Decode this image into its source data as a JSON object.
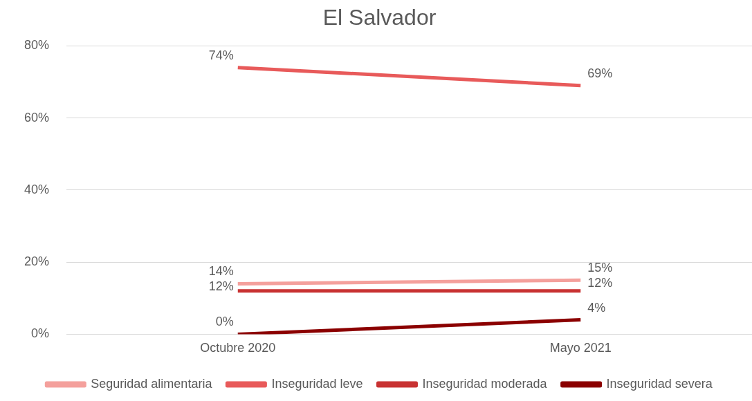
{
  "chart_data": {
    "type": "line",
    "title": "El Salvador",
    "categories": [
      "Octubre 2020",
      "Mayo 2021"
    ],
    "series": [
      {
        "name": "Seguridad alimentaria",
        "color": "#f4a09c",
        "values": [
          14,
          15
        ],
        "value_labels": [
          "14%",
          "15%"
        ]
      },
      {
        "name": "Inseguridad leve",
        "color": "#e85a5a",
        "values": [
          74,
          69
        ],
        "value_labels": [
          "74%",
          "69%"
        ]
      },
      {
        "name": "Inseguridad moderada",
        "color": "#c83232",
        "values": [
          12,
          12
        ],
        "value_labels": [
          "12%",
          "12%"
        ]
      },
      {
        "name": "Inseguridad severa",
        "color": "#8b0000",
        "values": [
          0,
          4
        ],
        "value_labels": [
          "0%",
          "4%"
        ]
      }
    ],
    "ylim": [
      0,
      80
    ],
    "yticks": [
      {
        "value": 0,
        "label": "0%"
      },
      {
        "value": 20,
        "label": "20%"
      },
      {
        "value": 40,
        "label": "40%"
      },
      {
        "value": 60,
        "label": "60%"
      },
      {
        "value": 80,
        "label": "80%"
      }
    ],
    "grid": "y",
    "legend": "bottom",
    "marker": "none",
    "line_style": "solid"
  }
}
